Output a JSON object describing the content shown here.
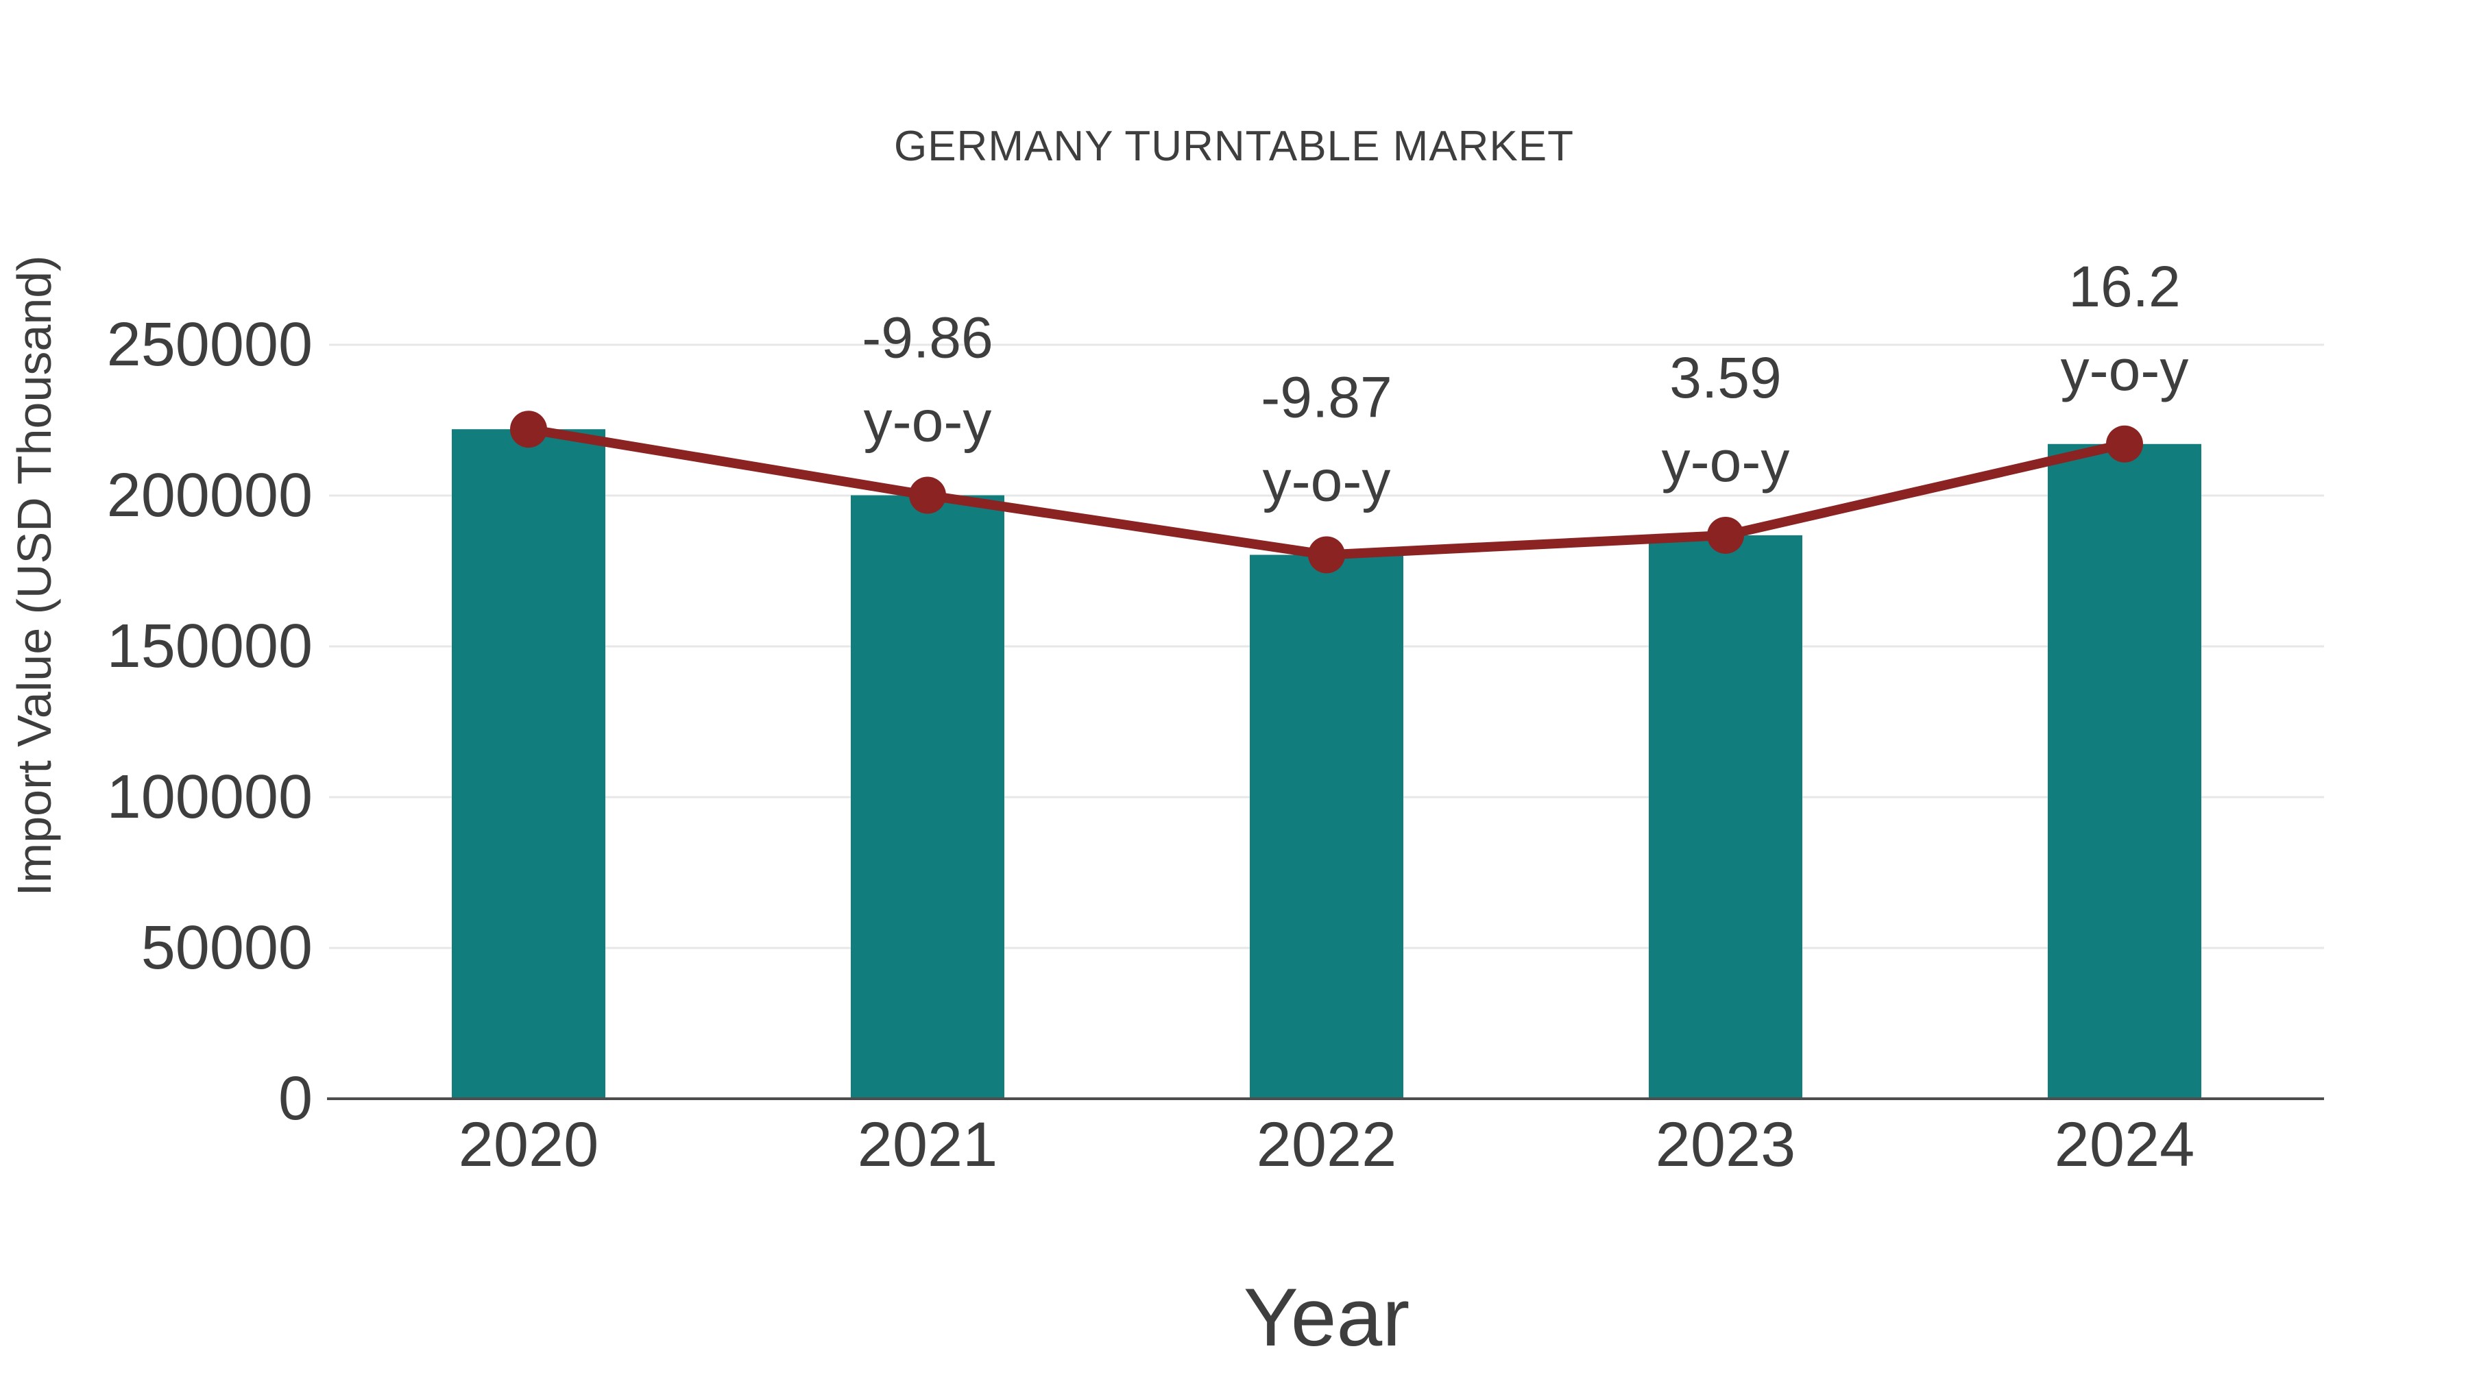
{
  "title": "GERMANY TURNTABLE MARKET",
  "chart_data": {
    "type": "bar",
    "title": "GERMANY TURNTABLE MARKET",
    "xlabel": "Year",
    "ylabel": "Import Value (USD Thousand)",
    "categories": [
      "2020",
      "2021",
      "2022",
      "2023",
      "2024"
    ],
    "series": [
      {
        "name": "Import Value (USD Thousand)",
        "type": "bar",
        "color": "#117d7d",
        "values": [
          222000,
          200100,
          180350,
          186830,
          217100
        ]
      },
      {
        "name": "Import Value trend",
        "type": "line",
        "color": "#8b2323",
        "values": [
          222000,
          200100,
          180350,
          186830,
          217100
        ]
      }
    ],
    "annotations": [
      {
        "category": "2021",
        "value_label": "-9.86",
        "suffix_label": "y-o-y"
      },
      {
        "category": "2022",
        "value_label": "-9.87",
        "suffix_label": "y-o-y"
      },
      {
        "category": "2023",
        "value_label": "3.59",
        "suffix_label": "y-o-y"
      },
      {
        "category": "2024",
        "value_label": "16.2",
        "suffix_label": "y-o-y"
      }
    ],
    "yoy_percent_change": [
      null,
      -9.86,
      -9.87,
      3.59,
      16.2
    ],
    "yticks": [
      0,
      50000,
      100000,
      150000,
      200000,
      250000
    ],
    "ylim": [
      0,
      250000
    ],
    "grid": "horizontal",
    "legend": "none",
    "colors": {
      "bar": "#117d7d",
      "line": "#8b2323",
      "marker": "#8b2323",
      "text": "#3e3e3e",
      "grid": "#e7e7e7",
      "axis": "#4d4d4d",
      "background": "#ffffff"
    }
  }
}
